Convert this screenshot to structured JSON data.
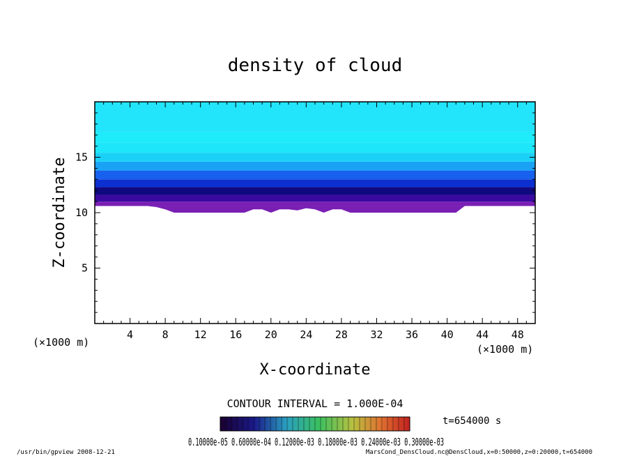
{
  "chart_data": {
    "type": "heatmap",
    "title": "density of cloud",
    "xlabel": "X-coordinate",
    "ylabel": "Z-coordinate",
    "x_unit": "(×1000 m)",
    "y_unit": "(×1000 m)",
    "xlim": [
      0,
      50
    ],
    "ylim": [
      0,
      20
    ],
    "x_ticks": [
      "4",
      "8",
      "12",
      "16",
      "20",
      "24",
      "28",
      "32",
      "36",
      "40",
      "44",
      "48"
    ],
    "y_ticks": [
      "5",
      "10",
      "15"
    ],
    "cloud_base_z": [
      10.6,
      10.6,
      10.6,
      10.6,
      10.6,
      10.6,
      10.6,
      10.5,
      10.3,
      10.0,
      10.0,
      10.0,
      10.0,
      10.0,
      10.0,
      10.0,
      10.0,
      10.0,
      10.3,
      10.3,
      10.0,
      10.3,
      10.3,
      10.2,
      10.4,
      10.3,
      10.0,
      10.3,
      10.3,
      10.0,
      10.0,
      10.0,
      10.0,
      10.0,
      10.0,
      10.0,
      10.0,
      10.0,
      10.0,
      10.0,
      10.0,
      10.0,
      10.6,
      10.6,
      10.6,
      10.6,
      10.6,
      10.6,
      10.6,
      10.6,
      10.6
    ],
    "color_band_z": [
      10.6,
      11.0,
      11.6,
      12.3,
      13.0,
      13.8,
      14.6,
      15.4,
      16.3,
      17.3,
      20.0
    ],
    "contour_interval": "CONTOUR INTERVAL = 1.000E-04",
    "colorbar_labels": "0.10000e-05 0.60000e-04 0.12000e-03 0.18000e-03 0.24000e-03 0.30000e-03",
    "time_label": "t=654000 s"
  },
  "footer": {
    "left": "/usr/bin/gpview  2008-12-21",
    "right": "MarsCond_DensCloud.nc@DensCloud,x=0:50000,z=0:20000,t=654000"
  },
  "colors": {
    "band_colors": [
      "#7a1fb4",
      "#3a0aa0",
      "#10087e",
      "#0c2fd0",
      "#1860ee",
      "#1aa3f5",
      "#1bd0f7",
      "#1ee6fa",
      "#1eecfb",
      "#22e4fb"
    ],
    "background": "#ffffff"
  }
}
